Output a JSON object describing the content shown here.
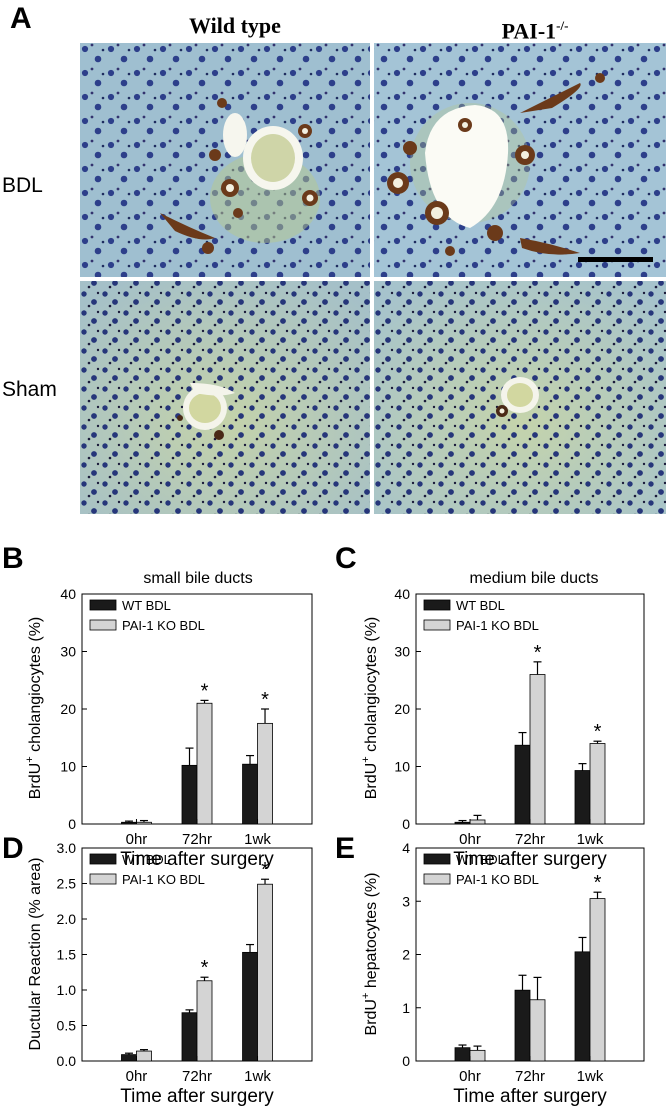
{
  "panel_a": {
    "letter": "A",
    "column_headers": [
      "Wild type",
      "PAI-1"
    ],
    "column_header_sup": "-/-",
    "row_labels": [
      "BDL",
      "Sham"
    ]
  },
  "colors": {
    "wt": "#1a1a1a",
    "ko": "#d4d4d4",
    "tissue_bg": "#9fbfd0",
    "tissue_green": "#b9c98e",
    "nuclei": "#2d3f8a",
    "duct_brown": "#6b3a1a"
  },
  "chart_data": [
    {
      "letter": "B",
      "type": "bar",
      "title": "small bile ducts",
      "ylabel_pre": "BrdU",
      "ylabel_sup": "+",
      "ylabel_post": " cholangiocytes (%)",
      "xlabel": "Time after surgery",
      "categories": [
        "0hr",
        "72hr",
        "1wk"
      ],
      "ylim": [
        0,
        40
      ],
      "yticks": [
        "0",
        "10",
        "20",
        "30",
        "40"
      ],
      "series": [
        {
          "name": "WT BDL",
          "values": [
            0.3,
            10.2,
            10.4
          ],
          "errors": [
            0.2,
            3.0,
            1.5
          ]
        },
        {
          "name": "PAI-1 KO BDL",
          "values": [
            0.3,
            21.0,
            17.5
          ],
          "errors": [
            0.3,
            0.5,
            2.5
          ]
        }
      ],
      "annotations": [
        "",
        "*",
        "*"
      ]
    },
    {
      "letter": "C",
      "type": "bar",
      "title": "medium bile ducts",
      "ylabel_pre": "BrdU",
      "ylabel_sup": "+",
      "ylabel_post": " cholangiocytes (%)",
      "xlabel": "Time after surgery",
      "categories": [
        "0hr",
        "72hr",
        "1wk"
      ],
      "ylim": [
        0,
        40
      ],
      "yticks": [
        "0",
        "10",
        "20",
        "30",
        "40"
      ],
      "series": [
        {
          "name": "WT BDL",
          "values": [
            0.3,
            13.7,
            9.3
          ],
          "errors": [
            0.3,
            2.2,
            1.2
          ]
        },
        {
          "name": "PAI-1 KO BDL",
          "values": [
            0.7,
            26.0,
            14.0
          ],
          "errors": [
            0.8,
            2.2,
            0.4
          ]
        }
      ],
      "annotations": [
        "",
        "*",
        "*"
      ]
    },
    {
      "letter": "D",
      "type": "bar",
      "title": "",
      "ylabel_pre": "Ductular Reaction (% area)",
      "ylabel_sup": "",
      "ylabel_post": "",
      "xlabel": "Time after surgery",
      "categories": [
        "0hr",
        "72hr",
        "1wk"
      ],
      "ylim": [
        0,
        3.0
      ],
      "yticks": [
        "0.0",
        "0.5",
        "1.0",
        "1.5",
        "2.0",
        "2.5",
        "3.0"
      ],
      "series": [
        {
          "name": "WT BDL",
          "values": [
            0.09,
            0.68,
            1.53
          ],
          "errors": [
            0.02,
            0.04,
            0.11
          ]
        },
        {
          "name": "PAI-1 KO BDL",
          "values": [
            0.14,
            1.13,
            2.49
          ],
          "errors": [
            0.02,
            0.05,
            0.07
          ]
        }
      ],
      "annotations": [
        "",
        "*",
        "*"
      ]
    },
    {
      "letter": "E",
      "type": "bar",
      "title": "",
      "ylabel_pre": "BrdU",
      "ylabel_sup": "+",
      "ylabel_post": " hepatocytes (%)",
      "xlabel": "Time after surgery",
      "categories": [
        "0hr",
        "72hr",
        "1wk"
      ],
      "ylim": [
        0,
        4
      ],
      "yticks": [
        "0",
        "1",
        "2",
        "3",
        "4"
      ],
      "series": [
        {
          "name": "WT BDL",
          "values": [
            0.25,
            1.33,
            2.05
          ],
          "errors": [
            0.05,
            0.28,
            0.27
          ]
        },
        {
          "name": "PAI-1 KO BDL",
          "values": [
            0.2,
            1.15,
            3.05
          ],
          "errors": [
            0.08,
            0.42,
            0.12
          ]
        }
      ],
      "annotations": [
        "",
        "",
        "*"
      ]
    }
  ]
}
